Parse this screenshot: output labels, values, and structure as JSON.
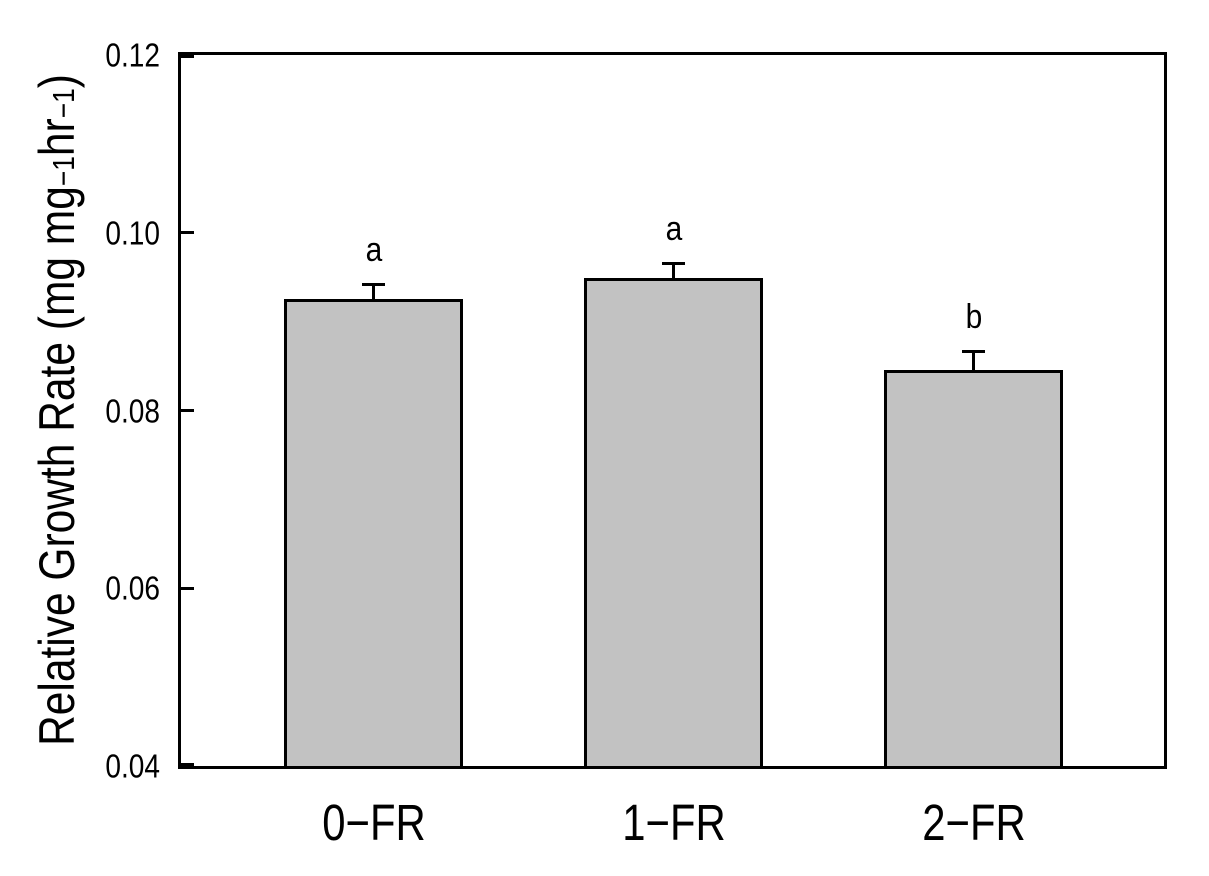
{
  "figure": {
    "background": "#ffffff",
    "axis_color": "#000000"
  },
  "chart_data": {
    "type": "bar",
    "title": "",
    "xlabel": "",
    "ylabel": "Relative Growth Rate (mg mg−1hr−1)",
    "ylabel_parts": {
      "prefix": "Relative Growth Rate (mg mg",
      "sup1": "−1",
      "mid": "hr",
      "sup2": "−1",
      "suffix": ")"
    },
    "categories": [
      "0−FR",
      "1−FR",
      "2−FR"
    ],
    "values": [
      0.0926,
      0.0949,
      0.0846
    ],
    "errors_upper": [
      0.0018,
      0.0018,
      0.0022
    ],
    "sig_letters": [
      "a",
      "a",
      "b"
    ],
    "ylim": [
      0.04,
      0.12
    ],
    "ytick_values": [
      0.12,
      0.1,
      0.08,
      0.06,
      0.04
    ],
    "ytick_labels": [
      "0.12",
      "0.10",
      "0.08",
      "0.06",
      "0.04"
    ],
    "grid": false,
    "legend": null,
    "bar_fill": "#c2c2c2",
    "bar_border": "#000000"
  }
}
